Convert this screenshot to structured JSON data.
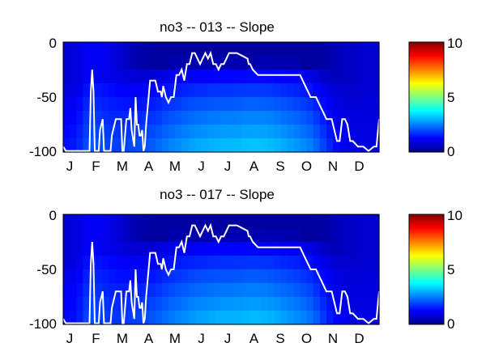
{
  "panels": [
    {
      "title": "no3 -- 013 -- Slope",
      "type": "heatmap",
      "x_ticks": [
        "J",
        "F",
        "M",
        "A",
        "M",
        "J",
        "J",
        "A",
        "S",
        "O",
        "N",
        "D"
      ],
      "y_ticks": [
        "0",
        "-50",
        "-100"
      ],
      "colorbar_ticks": [
        "10",
        "5",
        "0"
      ],
      "clim": [
        0,
        10
      ],
      "ylim": [
        -100,
        0
      ],
      "colormap": "jet",
      "line_color": "#ffffff",
      "heatmap_approx": {
        "x_months": [
          0,
          0.5,
          1,
          1.5,
          2,
          2.5,
          3,
          3.5,
          4,
          4.5,
          5,
          5.5,
          6,
          6.5,
          7,
          7.5,
          8,
          8.5,
          9,
          9.5,
          10,
          10.5,
          11,
          11.5,
          12
        ],
        "deep_values": [
          1.4,
          1.5,
          2.2,
          2.0,
          1.9,
          2.0,
          2.1,
          2.3,
          2.6,
          2.8,
          3.0,
          3.1,
          3.2,
          3.2,
          3.3,
          3.3,
          3.2,
          3.0,
          2.8,
          2.5,
          1.8,
          1.2,
          1.0,
          1.0,
          1.0
        ],
        "surface_values": [
          0.8,
          0.9,
          1.2,
          1.1,
          0.9,
          0.6,
          0.4,
          0.3,
          0.3,
          0.3,
          0.3,
          0.3,
          0.3,
          0.3,
          0.3,
          0.3,
          0.3,
          0.3,
          0.3,
          0.3,
          0.4,
          0.6,
          0.7,
          0.8,
          0.8
        ],
        "gradient_depth": [
          70,
          70,
          55,
          55,
          50,
          45,
          40,
          35,
          30,
          30,
          30,
          30,
          30,
          30,
          30,
          30,
          30,
          30,
          30,
          35,
          45,
          55,
          65,
          70,
          70
        ]
      },
      "line": {
        "x_months": [
          0,
          0.1,
          0.2,
          0.3,
          0.6,
          0.9,
          1.0,
          1.05,
          1.1,
          1.15,
          1.2,
          1.25,
          1.35,
          1.4,
          1.5,
          1.55,
          1.6,
          1.7,
          1.8,
          1.85,
          2.0,
          2.1,
          2.2,
          2.25,
          2.3,
          2.4,
          2.5,
          2.55,
          2.6,
          2.7,
          2.75,
          2.8,
          2.85,
          2.9,
          2.95,
          3.0,
          3.05,
          3.1,
          3.15,
          3.3,
          3.5,
          3.6,
          3.7,
          3.75,
          3.8,
          3.9,
          4.0,
          4.1,
          4.2,
          4.3,
          4.4,
          4.5,
          4.6,
          4.7,
          4.8,
          4.9,
          5.0,
          5.2,
          5.4,
          5.5,
          5.6,
          5.7,
          5.8,
          5.9,
          6.0,
          6.1,
          6.3,
          6.4,
          6.5,
          6.6,
          7.0,
          7.05,
          7.1,
          7.2,
          7.4,
          7.6,
          7.8,
          8.0,
          8.2,
          8.4,
          8.6,
          8.8,
          9.0,
          9.2,
          9.4,
          9.6,
          9.8,
          10.0,
          10.2,
          10.3,
          10.4,
          10.5,
          10.6,
          10.7,
          10.8,
          10.9,
          11.0,
          11.2,
          11.4,
          11.6,
          11.8,
          11.9,
          12.0
        ],
        "depth": [
          -95,
          -99,
          -99,
          -99,
          -99,
          -99,
          -99,
          -45,
          -25,
          -45,
          -99,
          -99,
          -99,
          -80,
          -70,
          -99,
          -99,
          -99,
          -99,
          -85,
          -70,
          -70,
          -70,
          -99,
          -99,
          -70,
          -70,
          -60,
          -80,
          -95,
          -50,
          -75,
          -75,
          -85,
          -85,
          -80,
          -99,
          -95,
          -75,
          -35,
          -35,
          -45,
          -45,
          -50,
          -40,
          -50,
          -55,
          -50,
          -50,
          -30,
          -30,
          -25,
          -35,
          -20,
          -20,
          -10,
          -10,
          -20,
          -10,
          -15,
          -10,
          -20,
          -20,
          -25,
          -20,
          -20,
          -10,
          -10,
          -10,
          -10,
          -15,
          -20,
          -20,
          -25,
          -30,
          -30,
          -30,
          -30,
          -30,
          -30,
          -30,
          -30,
          -30,
          -40,
          -50,
          -50,
          -60,
          -70,
          -70,
          -80,
          -90,
          -90,
          -70,
          -70,
          -75,
          -90,
          -90,
          -95,
          -95,
          -99,
          -95,
          -95,
          -70
        ]
      }
    },
    {
      "title": "no3 -- 017 -- Slope",
      "type": "heatmap",
      "x_ticks": [
        "J",
        "F",
        "M",
        "A",
        "M",
        "J",
        "J",
        "A",
        "S",
        "O",
        "N",
        "D"
      ],
      "y_ticks": [
        "0",
        "-50",
        "-100"
      ],
      "colorbar_ticks": [
        "10",
        "5",
        "0"
      ],
      "clim": [
        0,
        10
      ],
      "ylim": [
        -100,
        0
      ],
      "colormap": "jet",
      "line_color": "#ffffff",
      "heatmap_approx": {
        "x_months": [
          0,
          0.5,
          1,
          1.5,
          2,
          2.5,
          3,
          3.5,
          4,
          4.5,
          5,
          5.5,
          6,
          6.5,
          7,
          7.5,
          8,
          8.5,
          9,
          9.5,
          10,
          10.5,
          11,
          11.5,
          12
        ],
        "deep_values": [
          1.3,
          1.4,
          2.1,
          1.9,
          1.8,
          1.9,
          2.0,
          2.2,
          2.5,
          2.7,
          2.9,
          3.0,
          3.1,
          3.1,
          3.2,
          3.2,
          3.1,
          2.9,
          2.7,
          2.4,
          1.7,
          1.2,
          1.0,
          1.0,
          1.0
        ],
        "surface_values": [
          0.8,
          0.9,
          1.2,
          1.1,
          0.9,
          0.6,
          0.4,
          0.3,
          0.3,
          0.3,
          0.3,
          0.3,
          0.3,
          0.3,
          0.3,
          0.3,
          0.3,
          0.3,
          0.3,
          0.3,
          0.4,
          0.6,
          0.7,
          0.8,
          0.8
        ],
        "gradient_depth": [
          70,
          70,
          55,
          55,
          50,
          45,
          40,
          35,
          30,
          30,
          30,
          30,
          30,
          30,
          30,
          30,
          30,
          30,
          30,
          35,
          45,
          55,
          65,
          70,
          70
        ]
      },
      "line": {
        "x_months": [
          0,
          0.1,
          0.2,
          0.3,
          0.6,
          0.9,
          1.0,
          1.05,
          1.1,
          1.15,
          1.2,
          1.25,
          1.35,
          1.4,
          1.5,
          1.55,
          1.6,
          1.7,
          1.8,
          1.85,
          2.0,
          2.1,
          2.2,
          2.25,
          2.3,
          2.4,
          2.5,
          2.55,
          2.6,
          2.7,
          2.75,
          2.8,
          2.85,
          2.9,
          2.95,
          3.0,
          3.05,
          3.1,
          3.15,
          3.3,
          3.5,
          3.6,
          3.7,
          3.75,
          3.8,
          3.9,
          4.0,
          4.1,
          4.2,
          4.3,
          4.4,
          4.5,
          4.6,
          4.7,
          4.8,
          4.9,
          5.0,
          5.2,
          5.4,
          5.5,
          5.6,
          5.7,
          5.8,
          5.9,
          6.0,
          6.1,
          6.3,
          6.4,
          6.5,
          6.6,
          7.0,
          7.05,
          7.1,
          7.2,
          7.4,
          7.6,
          7.8,
          8.0,
          8.2,
          8.4,
          8.6,
          8.8,
          9.0,
          9.2,
          9.4,
          9.6,
          9.8,
          10.0,
          10.2,
          10.3,
          10.4,
          10.5,
          10.6,
          10.7,
          10.8,
          10.9,
          11.0,
          11.2,
          11.4,
          11.6,
          11.8,
          11.9,
          12.0
        ],
        "depth": [
          -95,
          -99,
          -99,
          -99,
          -99,
          -99,
          -99,
          -45,
          -25,
          -45,
          -99,
          -99,
          -99,
          -80,
          -70,
          -99,
          -99,
          -99,
          -99,
          -85,
          -70,
          -70,
          -70,
          -99,
          -99,
          -70,
          -70,
          -60,
          -80,
          -95,
          -50,
          -75,
          -75,
          -85,
          -85,
          -80,
          -99,
          -95,
          -75,
          -35,
          -35,
          -45,
          -45,
          -50,
          -40,
          -50,
          -55,
          -50,
          -50,
          -30,
          -30,
          -25,
          -35,
          -20,
          -20,
          -10,
          -10,
          -20,
          -10,
          -15,
          -10,
          -20,
          -20,
          -25,
          -20,
          -20,
          -10,
          -10,
          -10,
          -10,
          -15,
          -20,
          -20,
          -25,
          -30,
          -30,
          -30,
          -30,
          -30,
          -30,
          -30,
          -30,
          -30,
          -40,
          -50,
          -50,
          -60,
          -70,
          -70,
          -80,
          -90,
          -90,
          -70,
          -70,
          -75,
          -90,
          -90,
          -95,
          -95,
          -99,
          -95,
          -95,
          -70
        ]
      }
    }
  ],
  "chart_data": [
    {
      "type": "heatmap",
      "title": "no3 -- 013 -- Slope",
      "xlabel": "",
      "ylabel": "",
      "x_tick_labels": [
        "J",
        "F",
        "M",
        "A",
        "M",
        "J",
        "J",
        "A",
        "S",
        "O",
        "N",
        "D"
      ],
      "y_tick_labels": [
        "0",
        "-50",
        "-100"
      ],
      "ylim": [
        -100,
        0
      ],
      "colorbar": {
        "ticks": [
          10,
          5,
          0
        ],
        "range": [
          0,
          10
        ],
        "colormap": "jet"
      },
      "overlay_line_color": "white",
      "grid": false
    },
    {
      "type": "heatmap",
      "title": "no3 -- 017 -- Slope",
      "xlabel": "",
      "ylabel": "",
      "x_tick_labels": [
        "J",
        "F",
        "M",
        "A",
        "M",
        "J",
        "J",
        "A",
        "S",
        "O",
        "N",
        "D"
      ],
      "y_tick_labels": [
        "0",
        "-50",
        "-100"
      ],
      "ylim": [
        -100,
        0
      ],
      "colorbar": {
        "ticks": [
          10,
          5,
          0
        ],
        "range": [
          0,
          10
        ],
        "colormap": "jet"
      },
      "overlay_line_color": "white",
      "grid": false
    }
  ]
}
